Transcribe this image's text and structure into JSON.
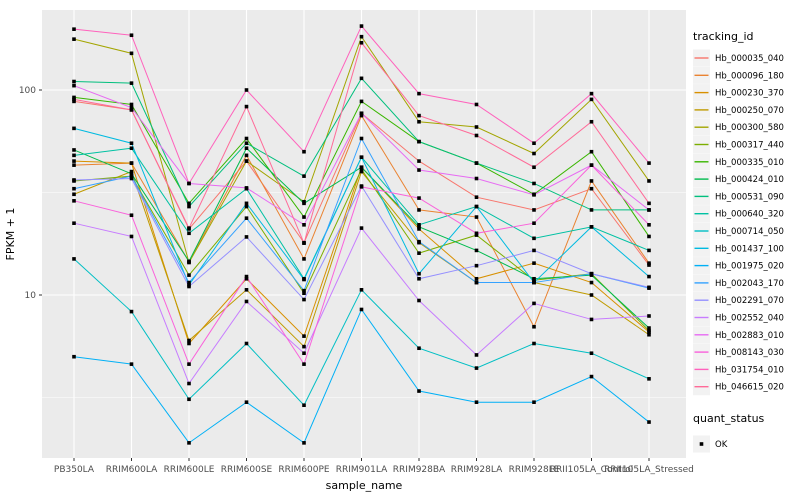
{
  "chart_data": {
    "type": "line",
    "title": "",
    "xlabel": "sample_name",
    "ylabel": "FPKM + 1",
    "y_scale": "log10",
    "y_tick_labels": [
      "100",
      "10"
    ],
    "y_tick_values": [
      100,
      10
    ],
    "y_minor_values": [
      31.62,
      3.162
    ],
    "ylim": [
      1.6,
      245
    ],
    "grid": true,
    "panel_background": "#EBEBEB",
    "gridline_color": "#FFFFFF",
    "tick_color": "#333333",
    "tick_label_color": "#4d4d4d",
    "point_color": "#000000",
    "legend_position": "right",
    "legend_title": "tracking_id",
    "legend2_title": "quant_status",
    "legend2_items": [
      {
        "label": "OK",
        "marker": "black-square"
      }
    ],
    "categories": [
      "PB350LA",
      "RRIM600LA",
      "RRIM600LE",
      "RRIM600SE",
      "RRIM600PE",
      "RRIM901LA",
      "RRIM928BA",
      "RRIM928LA",
      "RRIM928LE",
      "RRII105LA_Control",
      "RRII105LA_Stressed"
    ],
    "series": [
      {
        "name": "Hb_000035_040",
        "color": "#F8766D",
        "values": [
          88,
          80,
          21,
          45,
          18,
          77,
          45,
          30,
          26,
          33,
          14
        ]
      },
      {
        "name": "Hb_000096_180",
        "color": "#EA8331",
        "values": [
          43,
          44,
          14.5,
          48,
          15,
          75,
          26,
          24,
          7,
          36,
          14.3
        ]
      },
      {
        "name": "Hb_000230_370",
        "color": "#D89000",
        "values": [
          45,
          44,
          5.8,
          12,
          6.3,
          42,
          21,
          12,
          14.3,
          11.5,
          6.6
        ]
      },
      {
        "name": "Hb_000250_070",
        "color": "#C09B00",
        "values": [
          31,
          40,
          6,
          10.6,
          5.6,
          40,
          18,
          11.5,
          11.5,
          10,
          6.4
        ]
      },
      {
        "name": "Hb_000300_580",
        "color": "#A3A500",
        "values": [
          177,
          151,
          14.4,
          45,
          28.5,
          182,
          70,
          66,
          49,
          90,
          36
        ]
      },
      {
        "name": "Hb_000317_440",
        "color": "#7CAE00",
        "values": [
          36,
          38,
          12.5,
          27,
          10.2,
          41,
          16,
          19.6,
          11.8,
          12.7,
          6.7
        ]
      },
      {
        "name": "Hb_000335_010",
        "color": "#39B600",
        "values": [
          92,
          85,
          28,
          58,
          24,
          88,
          56,
          44,
          31,
          50,
          19.3
        ]
      },
      {
        "name": "Hb_000424_010",
        "color": "#00BB4E",
        "values": [
          51,
          39,
          14.6,
          52,
          28,
          42,
          21.5,
          16.5,
          12,
          12.5,
          6.9
        ]
      },
      {
        "name": "Hb_000531_090",
        "color": "#00BF7D",
        "values": [
          110,
          108,
          27,
          55,
          38,
          114,
          56,
          44,
          35,
          26,
          26
        ]
      },
      {
        "name": "Hb_000640_320",
        "color": "#00C1A3",
        "values": [
          48,
          52,
          20,
          33,
          12,
          47,
          22,
          27,
          18.9,
          21.5,
          16.5
        ]
      },
      {
        "name": "Hb_000714_050",
        "color": "#00BFC4",
        "values": [
          15,
          8.3,
          3.1,
          5.8,
          2.9,
          10.6,
          5.5,
          4.4,
          5.8,
          5.2,
          3.9
        ]
      },
      {
        "name": "Hb_001437_100",
        "color": "#00BAE0",
        "values": [
          65,
          55,
          11.2,
          28,
          11.9,
          47,
          12.7,
          27,
          11.5,
          21.5,
          12.3
        ]
      },
      {
        "name": "Hb_001975_020",
        "color": "#00B0F6",
        "values": [
          5,
          4.6,
          1.9,
          3,
          1.9,
          8.5,
          3.4,
          3,
          3,
          4,
          2.4
        ]
      },
      {
        "name": "Hb_002043_170",
        "color": "#35A2FF",
        "values": [
          33,
          38,
          11.5,
          23.7,
          10.5,
          58,
          18.2,
          11.5,
          11.5,
          12.7,
          10.8
        ]
      },
      {
        "name": "Hb_002291_070",
        "color": "#9590FF",
        "values": [
          36.4,
          37,
          11,
          19.2,
          9.5,
          34,
          12,
          13.9,
          16.5,
          12.7,
          10.9
        ]
      },
      {
        "name": "Hb_002552_040",
        "color": "#C77CFF",
        "values": [
          22.4,
          19.3,
          3.7,
          9.3,
          5.2,
          21.2,
          9.4,
          5.1,
          9.1,
          7.6,
          7.9
        ]
      },
      {
        "name": "Hb_002883_010",
        "color": "#E76BF3",
        "values": [
          105,
          82,
          35,
          33.3,
          22,
          77,
          40.7,
          37,
          30.8,
          43,
          26
        ]
      },
      {
        "name": "Hb_008143_030",
        "color": "#FA62DB",
        "values": [
          28.8,
          24.5,
          4.6,
          12.3,
          4.6,
          33.7,
          29.7,
          20,
          22.4,
          43,
          22
        ]
      },
      {
        "name": "Hb_031754_010",
        "color": "#FF62BC",
        "values": [
          198,
          185,
          35,
          100,
          50,
          205,
          96,
          85,
          55,
          96,
          44
        ]
      },
      {
        "name": "Hb_046615_020",
        "color": "#FF6A98",
        "values": [
          90,
          80,
          21.2,
          83,
          17.9,
          170,
          75,
          60,
          42,
          70,
          28
        ]
      }
    ]
  }
}
